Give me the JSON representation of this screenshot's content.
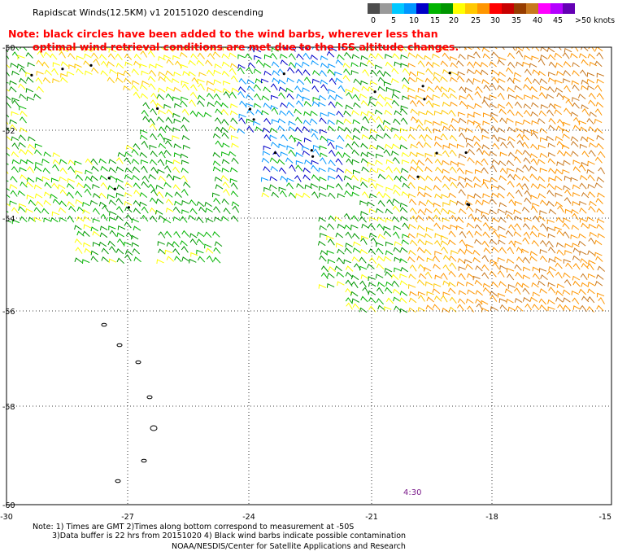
{
  "header": {
    "title": "Rapidscat Winds(12.5KM) v1 20151020 descending"
  },
  "notes": {
    "line1": "Note: black circles have been added to the wind barbs, wherever less than",
    "line2": "optimal wind retrieval conditions are met due to the ISS altitude changes."
  },
  "colorbar": {
    "colors": [
      "#4d4d4d",
      "#9a9a9a",
      "#00c8ff",
      "#0096ff",
      "#0000c8",
      "#00b400",
      "#009600",
      "#ffff00",
      "#ffc800",
      "#ff9600",
      "#ff0000",
      "#c80000",
      "#963c00",
      "#c8781e",
      "#ff00ff",
      "#b400ff",
      "#6400b4"
    ],
    "labels": [
      "0",
      "5",
      "10",
      "15",
      "20",
      "25",
      "30",
      "35",
      "40",
      "45",
      ">50 knots"
    ]
  },
  "map": {
    "lat_labels": [
      "-50",
      "-52",
      "-54",
      "-56",
      "-58",
      "-60"
    ],
    "lon_labels": [
      "-30",
      "-27",
      "-24",
      "-21",
      "-18",
      "-15"
    ],
    "time_label": "4:30"
  },
  "footer": {
    "line1": "Note: 1) Times are GMT 2)Times along bottom correspond to measurement at -50S",
    "line2": "3)Data buffer is 22 hrs from 20151020 4) Black wind barbs indicate possible contamination",
    "line3": "NOAA/NESDIS/Center for Satellite Applications and Research"
  }
}
